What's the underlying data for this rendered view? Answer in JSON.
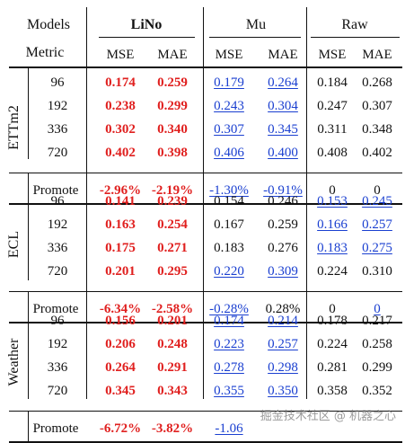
{
  "header": {
    "models_label": "Models",
    "metric_label": "Metric",
    "groups": [
      "LiNo",
      "Mu",
      "Raw"
    ],
    "metrics": [
      "MSE",
      "MAE",
      "MSE",
      "MAE",
      "MSE",
      "MAE"
    ]
  },
  "sections": [
    {
      "dataset": "ETTm2",
      "rows": [
        {
          "h": "96",
          "v": [
            "0.174",
            "0.259",
            "0.179",
            "0.264",
            "0.184",
            "0.268"
          ]
        },
        {
          "h": "192",
          "v": [
            "0.238",
            "0.299",
            "0.243",
            "0.304",
            "0.247",
            "0.307"
          ]
        },
        {
          "h": "336",
          "v": [
            "0.302",
            "0.340",
            "0.307",
            "0.345",
            "0.311",
            "0.348"
          ]
        },
        {
          "h": "720",
          "v": [
            "0.402",
            "0.398",
            "0.406",
            "0.400",
            "0.408",
            "0.402"
          ]
        }
      ],
      "promote": {
        "label": "Promote",
        "v": [
          "-2.96%",
          "-2.19%",
          "-1.30%",
          "-0.91%",
          "0",
          "0"
        ]
      }
    },
    {
      "dataset": "ECL",
      "rows": [
        {
          "h": "96",
          "v": [
            "0.141",
            "0.239",
            "0.154",
            "0.246",
            "0.153",
            "0.245"
          ]
        },
        {
          "h": "192",
          "v": [
            "0.163",
            "0.254",
            "0.167",
            "0.259",
            "0.166",
            "0.257"
          ]
        },
        {
          "h": "336",
          "v": [
            "0.175",
            "0.271",
            "0.183",
            "0.276",
            "0.183",
            "0.275"
          ]
        },
        {
          "h": "720",
          "v": [
            "0.201",
            "0.295",
            "0.220",
            "0.309",
            "0.224",
            "0.310"
          ]
        }
      ],
      "promote": {
        "label": "Promote",
        "v": [
          "-6.34%",
          "-2.58%",
          "-0.28%",
          "0.28%",
          "0",
          "0"
        ]
      }
    },
    {
      "dataset": "Weather",
      "rows": [
        {
          "h": "96",
          "v": [
            "0.156",
            "0.201",
            "0.174",
            "0.214",
            "0.178",
            "0.217"
          ]
        },
        {
          "h": "192",
          "v": [
            "0.206",
            "0.248",
            "0.223",
            "0.257",
            "0.224",
            "0.258"
          ]
        },
        {
          "h": "336",
          "v": [
            "0.264",
            "0.291",
            "0.278",
            "0.298",
            "0.281",
            "0.299"
          ]
        },
        {
          "h": "720",
          "v": [
            "0.345",
            "0.343",
            "0.355",
            "0.350",
            "0.358",
            "0.352"
          ]
        }
      ],
      "promote": {
        "label": "Promote",
        "v": [
          "-6.72%",
          "-3.82%",
          "-1.06",
          "",
          "",
          ""
        ]
      }
    }
  ],
  "styles": {
    "best_color": "#e0201f",
    "second_color": "#1a3fd0",
    "best": [
      [
        [
          0,
          1
        ],
        [
          0,
          1
        ],
        [
          0,
          1
        ],
        [
          0,
          1
        ],
        [
          0,
          1
        ]
      ],
      [
        [
          0,
          1
        ],
        [
          0,
          1
        ],
        [
          0,
          1
        ],
        [
          0,
          1
        ],
        [
          0,
          1
        ]
      ],
      [
        [
          0,
          1
        ],
        [
          0,
          1
        ],
        [
          0,
          1
        ],
        [
          0,
          1
        ],
        [
          0,
          1
        ]
      ]
    ],
    "second": [
      [
        [
          2,
          3
        ],
        [
          2,
          3
        ],
        [
          2,
          3
        ],
        [
          2,
          3
        ],
        [
          2,
          3
        ]
      ],
      [
        [
          4,
          5
        ],
        [
          4,
          5
        ],
        [
          4,
          5
        ],
        [
          2,
          3
        ],
        [
          2,
          5
        ]
      ],
      [
        [
          2,
          3
        ],
        [
          2,
          3
        ],
        [
          2,
          3
        ],
        [
          2,
          3
        ],
        [
          2
        ]
      ]
    ]
  },
  "watermark": "掘金技术社区 @ 机器之心"
}
